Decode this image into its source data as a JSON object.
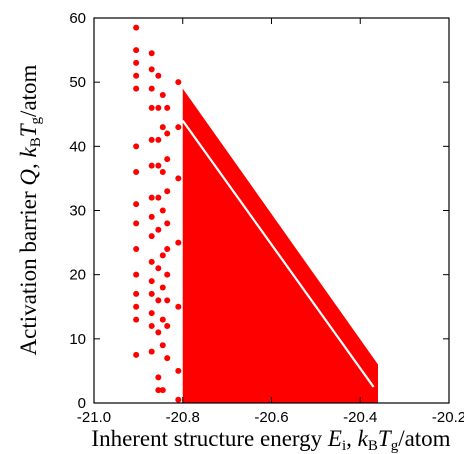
{
  "chart_data": {
    "type": "scatter",
    "title": "",
    "xlabel": "Inherent structure energy E_i, k_BT_g/atom",
    "ylabel": "Activation barrier Q, k_BT_g/atom",
    "xlim": [
      -21.0,
      -20.2
    ],
    "ylim": [
      0,
      60
    ],
    "x_ticks": [
      "-21.0",
      "-20.8",
      "-20.6",
      "-20.4",
      "-20.2"
    ],
    "y_ticks": [
      "0",
      "10",
      "20",
      "30",
      "40",
      "50",
      "60"
    ],
    "grid": false,
    "legend": "none",
    "marker_color": "#ff0000",
    "series": [
      {
        "points": [
          [
            -20.905,
            58.5
          ],
          [
            -20.905,
            55
          ],
          [
            -20.905,
            53
          ],
          [
            -20.905,
            51
          ],
          [
            -20.905,
            49
          ],
          [
            -20.905,
            40
          ],
          [
            -20.905,
            36
          ],
          [
            -20.905,
            31
          ],
          [
            -20.905,
            28
          ],
          [
            -20.905,
            24
          ],
          [
            -20.905,
            20
          ],
          [
            -20.905,
            17
          ],
          [
            -20.905,
            15
          ],
          [
            -20.905,
            13
          ],
          [
            -20.905,
            7.5
          ],
          [
            -20.87,
            54.5
          ],
          [
            -20.87,
            52
          ],
          [
            -20.87,
            49
          ],
          [
            -20.87,
            46
          ],
          [
            -20.87,
            41
          ],
          [
            -20.87,
            37
          ],
          [
            -20.87,
            32
          ],
          [
            -20.87,
            29
          ],
          [
            -20.87,
            26
          ],
          [
            -20.87,
            22
          ],
          [
            -20.87,
            19
          ],
          [
            -20.87,
            17
          ],
          [
            -20.87,
            14
          ],
          [
            -20.87,
            12
          ],
          [
            -20.87,
            8
          ],
          [
            -20.855,
            51
          ],
          [
            -20.855,
            46
          ],
          [
            -20.855,
            41
          ],
          [
            -20.855,
            37
          ],
          [
            -20.855,
            32
          ],
          [
            -20.855,
            27
          ],
          [
            -20.855,
            21
          ],
          [
            -20.855,
            16
          ],
          [
            -20.855,
            11
          ],
          [
            -20.855,
            4
          ],
          [
            -20.855,
            2
          ],
          [
            -20.845,
            48
          ],
          [
            -20.845,
            43
          ],
          [
            -20.845,
            36
          ],
          [
            -20.845,
            30
          ],
          [
            -20.845,
            23
          ],
          [
            -20.845,
            18
          ],
          [
            -20.845,
            13
          ],
          [
            -20.845,
            9
          ],
          [
            -20.845,
            2
          ],
          [
            -20.835,
            46
          ],
          [
            -20.835,
            42
          ],
          [
            -20.835,
            38
          ],
          [
            -20.835,
            33
          ],
          [
            -20.835,
            28
          ],
          [
            -20.835,
            24
          ],
          [
            -20.835,
            20
          ],
          [
            -20.835,
            16
          ],
          [
            -20.835,
            12
          ],
          [
            -20.835,
            7
          ],
          [
            -20.81,
            50
          ],
          [
            -20.81,
            43
          ],
          [
            -20.81,
            35
          ],
          [
            -20.81,
            25
          ],
          [
            -20.81,
            15
          ],
          [
            -20.81,
            5
          ],
          [
            -20.81,
            0.5
          ]
        ]
      }
    ],
    "band": {
      "upper_edge": [
        [
          -20.8,
          49
        ],
        [
          -20.36,
          6
        ]
      ],
      "lower_edge": [
        [
          -20.8,
          0
        ],
        [
          -20.36,
          0
        ]
      ],
      "gap_line": [
        [
          -20.8,
          44
        ],
        [
          -20.37,
          2.5
        ]
      ]
    }
  }
}
